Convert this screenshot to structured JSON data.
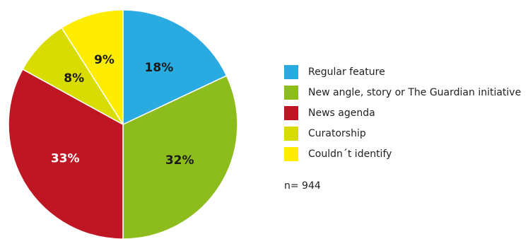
{
  "chart_data": {
    "type": "pie",
    "title": "",
    "start": "12 o'clock",
    "direction": "clockwise",
    "legend_position": "right",
    "slices": [
      {
        "label": "Regular feature",
        "value": 18,
        "value_label": "18%",
        "color": "#29abe2"
      },
      {
        "label": "New angle, story or The Guardian initiative",
        "value": 32,
        "value_label": "32%",
        "color": "#8cbd1d"
      },
      {
        "label": "News agenda",
        "value": 33,
        "value_label": "33%",
        "color": "#be1622"
      },
      {
        "label": "Curatorship",
        "value": 8,
        "value_label": "8%",
        "color": "#d9dc00"
      },
      {
        "label": "Couldn´t identify",
        "value": 9,
        "value_label": "9%",
        "color": "#ffec00"
      }
    ],
    "note": "n= 944"
  }
}
